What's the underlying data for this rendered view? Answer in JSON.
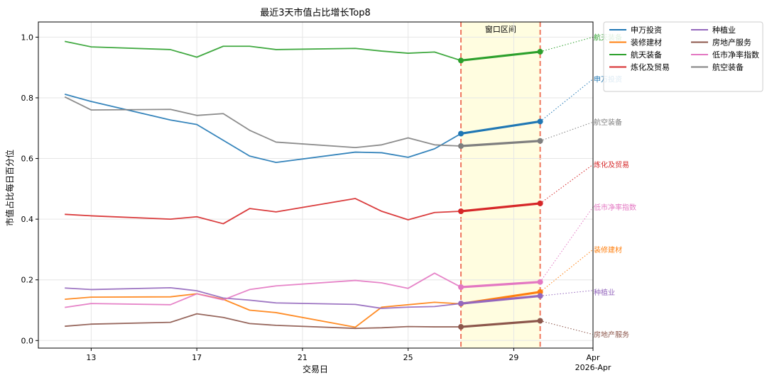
{
  "chart_data": {
    "type": "line",
    "title": "最近3天市值占比增长Top8",
    "xlabel": "交易日",
    "ylabel": "市值占比每日百分位",
    "ylim": [
      -0.025,
      1.05
    ],
    "xlim": [
      "2026-03-11",
      "2026-04-01"
    ],
    "x_ticks": [
      {
        "date": "2026-03-13",
        "label": "13"
      },
      {
        "date": "2026-03-17",
        "label": "17"
      },
      {
        "date": "2026-03-21",
        "label": "21"
      },
      {
        "date": "2026-03-25",
        "label": "25"
      },
      {
        "date": "2026-03-29",
        "label": "29"
      },
      {
        "date": "2026-04-01",
        "label": "Apr",
        "label2": "2026-Apr"
      }
    ],
    "y_ticks": [
      "0.0",
      "0.2",
      "0.4",
      "0.6",
      "0.8",
      "1.0"
    ],
    "grid": true,
    "legend": {
      "placement": "outside-top-right",
      "columns": 2
    },
    "window": {
      "start": "2026-03-27",
      "end": "2026-03-30",
      "label": "窗口区间",
      "fill": "#fffde0",
      "line_color": "#f07860"
    },
    "projection_date": "2026-04-01",
    "dates": [
      "2026-03-12",
      "2026-03-13",
      "2026-03-16",
      "2026-03-17",
      "2026-03-18",
      "2026-03-19",
      "2026-03-20",
      "2026-03-23",
      "2026-03-24",
      "2026-03-25",
      "2026-03-26",
      "2026-03-27",
      "2026-03-30"
    ],
    "series": [
      {
        "name": "申万投资",
        "color": "#1f77b4",
        "values": [
          0.812,
          0.788,
          0.727,
          0.712,
          0.66,
          0.608,
          0.587,
          0.621,
          0.619,
          0.604,
          0.632,
          0.682,
          0.722
        ],
        "projection": 0.862,
        "end_label": "申万投资",
        "end_label_y": 0.862
      },
      {
        "name": "装修建材",
        "color": "#ff7f0e",
        "values": [
          0.136,
          0.143,
          0.144,
          0.154,
          0.136,
          0.1,
          0.092,
          0.044,
          0.11,
          0.118,
          0.126,
          0.121,
          0.16
        ],
        "projection": 0.3,
        "end_label": "装修建材",
        "end_label_y": 0.3
      },
      {
        "name": "航天装备",
        "color": "#2ca02c",
        "values": [
          0.986,
          0.968,
          0.959,
          0.934,
          0.97,
          0.97,
          0.959,
          0.963,
          0.954,
          0.947,
          0.951,
          0.923,
          0.952
        ],
        "projection": 1.0,
        "end_label": "航天装备",
        "end_label_y": 1.0
      },
      {
        "name": "炼化及贸易",
        "color": "#d62728",
        "values": [
          0.416,
          0.411,
          0.4,
          0.408,
          0.385,
          0.435,
          0.424,
          0.468,
          0.426,
          0.398,
          0.422,
          0.426,
          0.452
        ],
        "projection": 0.58,
        "end_label": "炼化及贸易",
        "end_label_y": 0.58
      },
      {
        "name": "种植业",
        "color": "#9467bd",
        "values": [
          0.173,
          0.168,
          0.174,
          0.164,
          0.14,
          0.133,
          0.124,
          0.119,
          0.106,
          0.11,
          0.112,
          0.122,
          0.147
        ],
        "projection": 0.165,
        "end_label": "种植业",
        "end_label_y": 0.16
      },
      {
        "name": "房地产服务",
        "color": "#8c564b",
        "values": [
          0.047,
          0.054,
          0.06,
          0.088,
          0.076,
          0.056,
          0.05,
          0.04,
          0.042,
          0.046,
          0.045,
          0.045,
          0.065
        ],
        "projection": 0.02,
        "end_label": "房地产服务",
        "end_label_y": 0.02
      },
      {
        "name": "低市净率指数",
        "color": "#e377c2",
        "values": [
          0.109,
          0.122,
          0.118,
          0.154,
          0.134,
          0.168,
          0.18,
          0.198,
          0.19,
          0.172,
          0.222,
          0.176,
          0.193
        ],
        "projection": 0.44,
        "end_label": "低市净率指数",
        "end_label_y": 0.44
      },
      {
        "name": "航空装备",
        "color": "#7f7f7f",
        "values": [
          0.803,
          0.76,
          0.762,
          0.742,
          0.748,
          0.693,
          0.654,
          0.636,
          0.645,
          0.668,
          0.645,
          0.641,
          0.658
        ],
        "projection": 0.72,
        "end_label": "航空装备",
        "end_label_y": 0.72
      }
    ]
  }
}
